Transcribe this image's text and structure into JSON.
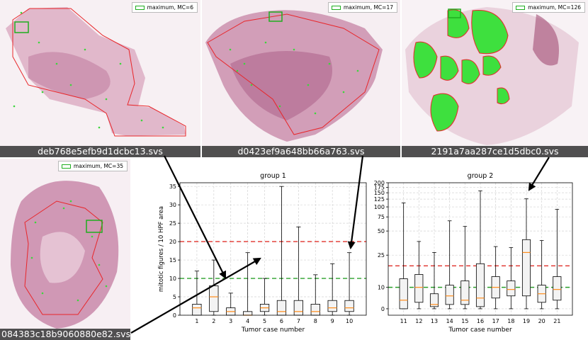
{
  "slides": [
    {
      "caption": "deb768e5efb9d1dcbc13.svs",
      "legend": "maximum, MC=6"
    },
    {
      "caption": "d0423ef9a648bb66a763.svs",
      "legend": "maximum, MC=17"
    },
    {
      "caption": "2191a7aa287ce1d5dbc0.svs",
      "legend": "maximum, MC=126"
    },
    {
      "caption": "084383c18b9060880e82.svs",
      "legend": "maximum, MC=35"
    }
  ],
  "colors": {
    "threshold_red": "#e0302a",
    "threshold_green": "#2aa02a",
    "median": "#ff8c1a",
    "roi": "#1fae1f"
  },
  "chart_data": [
    {
      "type": "box",
      "title": "group 1",
      "xlabel": "Tumor case number",
      "ylabel": "mitotic figures / 10 HPF area",
      "ylim": [
        0,
        36
      ],
      "yticks": [
        0,
        5,
        10,
        15,
        20,
        25,
        30,
        35
      ],
      "grid": true,
      "thresholds": [
        20,
        10
      ],
      "categories": [
        "1",
        "2",
        "3",
        "4",
        "5",
        "6",
        "7",
        "8",
        "9",
        "10"
      ],
      "boxes": [
        {
          "min": 0,
          "q1": 0,
          "median": 2,
          "q3": 3,
          "max": 12
        },
        {
          "min": 0,
          "q1": 1,
          "median": 5,
          "q3": 8,
          "max": 15
        },
        {
          "min": 0,
          "q1": 0,
          "median": 1,
          "q3": 2,
          "max": 6
        },
        {
          "min": 0,
          "q1": 0,
          "median": 0,
          "q3": 1,
          "max": 17
        },
        {
          "min": 0,
          "q1": 1,
          "median": 2,
          "q3": 3,
          "max": 10
        },
        {
          "min": 0,
          "q1": 0,
          "median": 1,
          "q3": 4,
          "max": 35
        },
        {
          "min": 0,
          "q1": 0,
          "median": 1,
          "q3": 4,
          "max": 24
        },
        {
          "min": 0,
          "q1": 0,
          "median": 1,
          "q3": 3,
          "max": 11
        },
        {
          "min": 0,
          "q1": 1,
          "median": 2,
          "q3": 4,
          "max": 14
        },
        {
          "min": 0,
          "q1": 1,
          "median": 2,
          "q3": 4,
          "max": 17
        }
      ]
    },
    {
      "type": "box",
      "title": "group 2",
      "xlabel": "Tumor case number",
      "ylabel": "",
      "yscale": "symlog (linear below 25)",
      "ylim": [
        -3,
        200
      ],
      "yticks": [
        0,
        10,
        25,
        50,
        75,
        100,
        125,
        150,
        175,
        200
      ],
      "grid": true,
      "thresholds": [
        20,
        10
      ],
      "categories": [
        "11",
        "12",
        "13",
        "14",
        "15",
        "16",
        "17",
        "18",
        "19",
        "20",
        "21"
      ],
      "boxes": [
        {
          "min": 0,
          "q1": 0,
          "median": 4,
          "q3": 14,
          "max": 112
        },
        {
          "min": 0,
          "q1": 3,
          "median": 10,
          "q3": 16,
          "max": 37
        },
        {
          "min": 0,
          "q1": 1,
          "median": 2,
          "q3": 7,
          "max": 27
        },
        {
          "min": 0,
          "q1": 2,
          "median": 6,
          "q3": 11,
          "max": 67
        },
        {
          "min": 0,
          "q1": 2,
          "median": 4,
          "q3": 13,
          "max": 57
        },
        {
          "min": 0,
          "q1": 1,
          "median": 5,
          "q3": 21,
          "max": 158
        },
        {
          "min": 0,
          "q1": 5,
          "median": 10,
          "q3": 15,
          "max": 32
        },
        {
          "min": 0,
          "q1": 6,
          "median": 9,
          "q3": 13,
          "max": 31
        },
        {
          "min": 0,
          "q1": 6,
          "median": 27,
          "q3": 39,
          "max": 126
        },
        {
          "min": 0,
          "q1": 3,
          "median": 7,
          "q3": 11,
          "max": 38
        },
        {
          "min": 0,
          "q1": 4,
          "median": 9,
          "q3": 15,
          "max": 93
        }
      ]
    }
  ]
}
